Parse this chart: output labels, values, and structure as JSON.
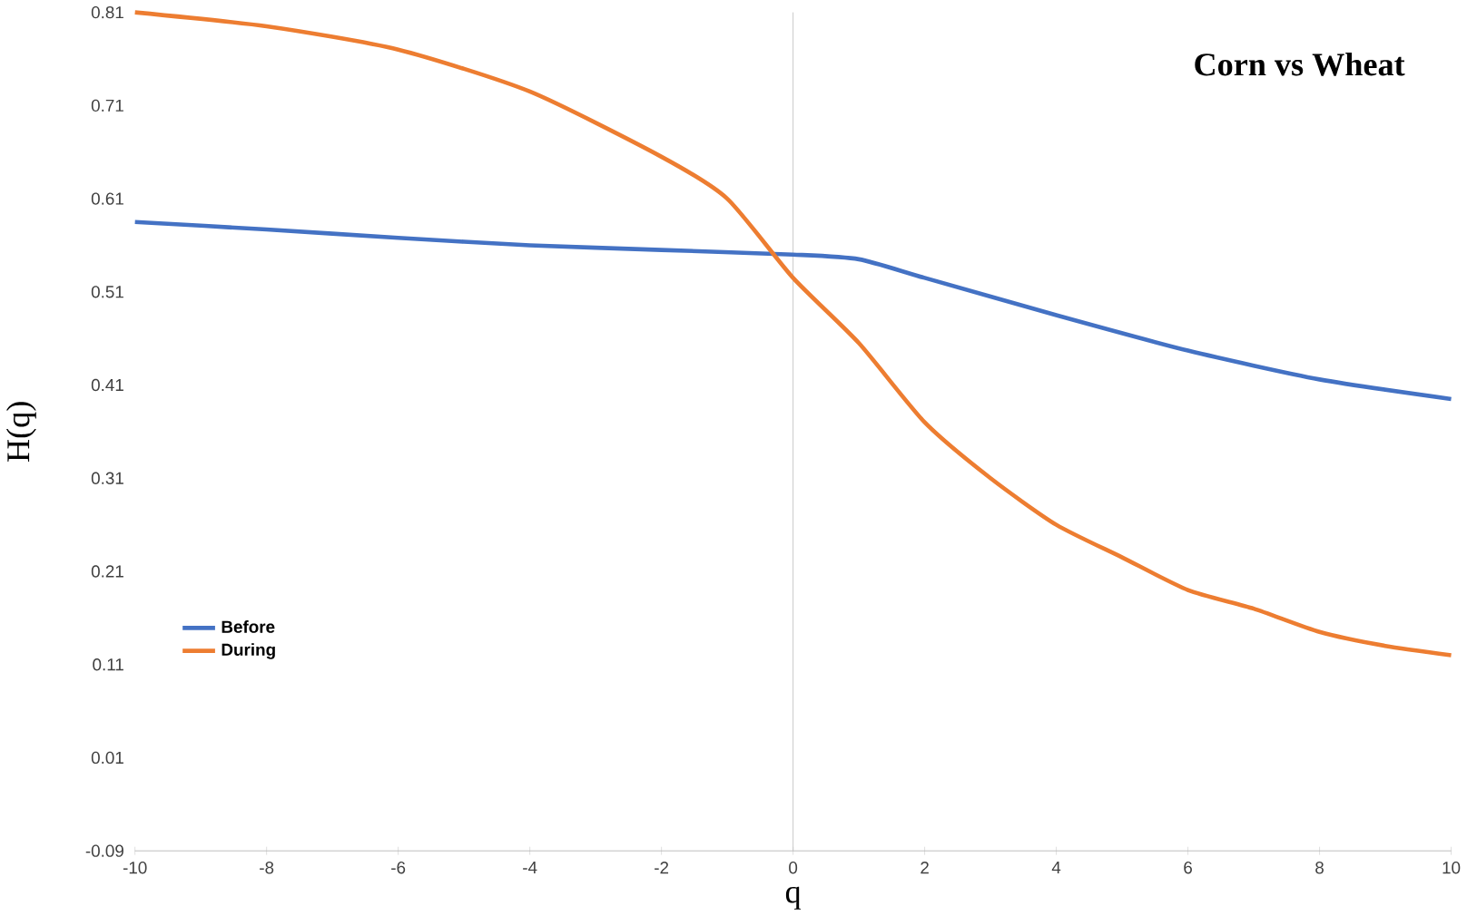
{
  "chart_data": {
    "type": "line",
    "title": "Corn vs Wheat",
    "xlabel": "q",
    "ylabel": "H(q)",
    "xlim": [
      -10,
      10
    ],
    "xticks": [
      -10,
      -8,
      -6,
      -4,
      -2,
      0,
      2,
      4,
      6,
      8,
      10
    ],
    "ylim": [
      -0.09,
      0.81
    ],
    "yticks": [
      -0.09,
      0.01,
      0.11,
      0.21,
      0.31,
      0.41,
      0.51,
      0.61,
      0.71,
      0.81
    ],
    "grid": false,
    "legend": "bottom left",
    "marker": "none",
    "line_style": "solid",
    "ref_lines": [
      {
        "axis": "x",
        "value": 0,
        "color": "#bfbfbf"
      }
    ],
    "series": [
      {
        "name": "Before",
        "color": "#4472c4",
        "x": [
          -10,
          -8,
          -6,
          -4,
          -2,
          0,
          1,
          2,
          4,
          6,
          8,
          10
        ],
        "values": [
          0.585,
          0.577,
          0.568,
          0.56,
          0.555,
          0.55,
          0.545,
          0.525,
          0.485,
          0.447,
          0.416,
          0.395
        ]
      },
      {
        "name": "During",
        "color": "#ed7d31",
        "x": [
          -10,
          -8,
          -6,
          -4,
          -2,
          -1,
          0,
          1,
          2,
          3,
          4,
          5,
          6,
          7,
          8,
          9,
          10
        ],
        "values": [
          0.81,
          0.795,
          0.77,
          0.725,
          0.655,
          0.61,
          0.525,
          0.455,
          0.37,
          0.31,
          0.26,
          0.225,
          0.19,
          0.17,
          0.145,
          0.13,
          0.12
        ]
      }
    ]
  }
}
